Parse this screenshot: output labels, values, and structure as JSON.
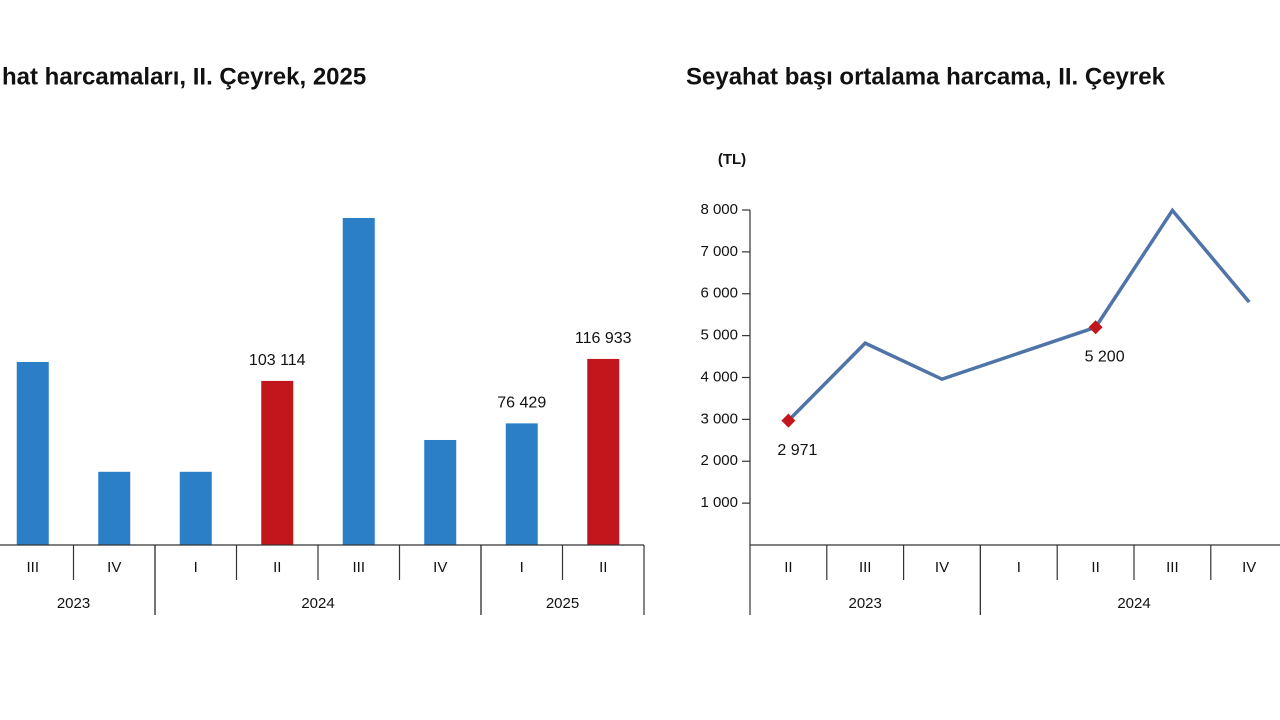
{
  "chart_data": [
    {
      "type": "bar",
      "title": "hat harcamaları, II. Çeyrek, 2025",
      "categories": [
        "III",
        "IV",
        "I",
        "II",
        "III",
        "IV",
        "I",
        "II"
      ],
      "groups": [
        {
          "name": "2023",
          "count": 2
        },
        {
          "name": "2024",
          "count": 4
        },
        {
          "name": "2025",
          "count": 2
        }
      ],
      "values": [
        115000,
        46000,
        46000,
        103114,
        205500,
        66000,
        76429,
        116933
      ],
      "value_labels": [
        null,
        null,
        null,
        "103 114",
        null,
        null,
        "76 429",
        "116 933"
      ],
      "colors": [
        "#2a7fc6",
        "#2a7fc6",
        "#2a7fc6",
        "#c0161c",
        "#2a7fc6",
        "#2a7fc6",
        "#2a7fc6",
        "#c0161c"
      ]
    },
    {
      "type": "line",
      "title": "Seyahat başı ortalama harcama, II. Çeyrek",
      "y_unit": "(TL)",
      "categories": [
        "II",
        "III",
        "IV",
        "I",
        "II",
        "III",
        "IV"
      ],
      "groups": [
        {
          "name": "2023",
          "count": 3
        },
        {
          "name": "2024",
          "count": 4
        }
      ],
      "values": [
        2971,
        4820,
        3960,
        4580,
        5200,
        7990,
        5800
      ],
      "value_labels": [
        "2 971",
        null,
        null,
        null,
        "5 200",
        null,
        null
      ],
      "color": "#4f74a8",
      "marker_color": "#c0161c",
      "ylim": [
        0,
        8000
      ],
      "yticks": [
        {
          "value": 1000,
          "label": "1 000"
        },
        {
          "value": 2000,
          "label": "2 000"
        },
        {
          "value": 3000,
          "label": "3 000"
        },
        {
          "value": 4000,
          "label": "4 000"
        },
        {
          "value": 5000,
          "label": "5 000"
        },
        {
          "value": 6000,
          "label": "6 000"
        },
        {
          "value": 7000,
          "label": "7 000"
        },
        {
          "value": 8000,
          "label": "8 000"
        }
      ]
    }
  ]
}
